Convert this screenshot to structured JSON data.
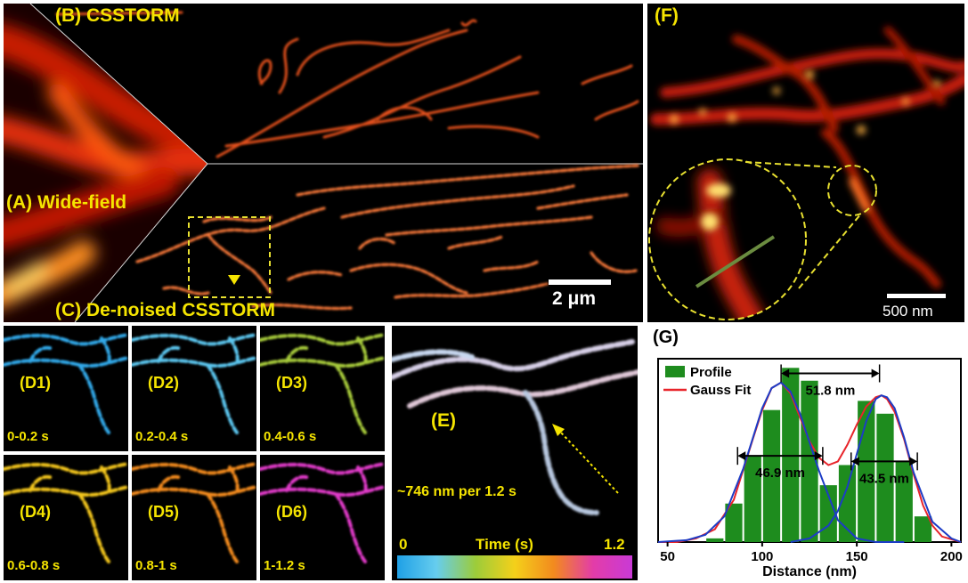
{
  "panels": {
    "B": {
      "label": "(B) CSSTORM"
    },
    "A": {
      "label": "(A) Wide-field"
    },
    "C": {
      "label": "(C) De-noised CSSTORM"
    },
    "scalebar_main": "2 μm",
    "F": {
      "label": "(F)",
      "scalebar": "500 nm"
    },
    "D": [
      {
        "label": "(D1)",
        "time": "0-0.2 s",
        "color": "#31a8e8"
      },
      {
        "label": "(D2)",
        "time": "0.2-0.4 s",
        "color": "#5cc6ef"
      },
      {
        "label": "(D3)",
        "time": "0.4-0.6 s",
        "color": "#a6c93a"
      },
      {
        "label": "(D4)",
        "time": "0.6-0.8 s",
        "color": "#f2c51a"
      },
      {
        "label": "(D5)",
        "time": "0.8-1 s",
        "color": "#f28a1e"
      },
      {
        "label": "(D6)",
        "time": "1-1.2 s",
        "color": "#e13bc9"
      }
    ],
    "E": {
      "label": "(E)",
      "speed": "~746 nm per 1.2 s",
      "colorbar": {
        "min": "0",
        "max": "1.2",
        "title": "Time (s)",
        "colors": [
          "#1fa0e6",
          "#66cdee",
          "#9ccc3a",
          "#f4d01a",
          "#f28a1e",
          "#e33ca8",
          "#c93ad6"
        ]
      }
    },
    "G": {
      "label": "(G)"
    }
  },
  "chart_data": {
    "type": "bar",
    "title": "",
    "xlabel": "Distance (nm)",
    "ylabel": "",
    "xlim": [
      45,
      205
    ],
    "ylim": [
      0,
      1.0
    ],
    "xticks": [
      50,
      100,
      150,
      200
    ],
    "bars": {
      "name": "Profile",
      "color": "#1e8c1e",
      "width": 10,
      "x": [
        75,
        85,
        95,
        105,
        115,
        125,
        135,
        145,
        155,
        165,
        175,
        185,
        195
      ],
      "values": [
        0.02,
        0.21,
        0.47,
        0.72,
        0.95,
        0.88,
        0.31,
        0.42,
        0.77,
        0.7,
        0.44,
        0.14,
        0.0
      ]
    },
    "fits": [
      {
        "name": "Gauss Fit",
        "color": "#e8242a",
        "x": [
          45,
          55,
          65,
          75,
          85,
          95,
          100,
          105,
          110,
          115,
          120,
          125,
          130,
          135,
          140,
          145,
          150,
          155,
          160,
          163,
          166,
          170,
          175,
          180,
          185,
          190,
          195,
          205
        ],
        "values": [
          0.0,
          0.0,
          0.02,
          0.07,
          0.23,
          0.56,
          0.72,
          0.84,
          0.87,
          0.81,
          0.68,
          0.55,
          0.46,
          0.42,
          0.44,
          0.53,
          0.64,
          0.74,
          0.79,
          0.8,
          0.78,
          0.71,
          0.56,
          0.37,
          0.2,
          0.09,
          0.03,
          0.0
        ]
      },
      {
        "name": "",
        "color": "#1c3cc6",
        "x": [
          45,
          60,
          70,
          80,
          90,
          100,
          105,
          110,
          115,
          120,
          130,
          140,
          150,
          160,
          175
        ],
        "values": [
          0.0,
          0.01,
          0.04,
          0.14,
          0.4,
          0.73,
          0.84,
          0.87,
          0.82,
          0.7,
          0.39,
          0.12,
          0.02,
          0.0,
          0.0
        ]
      },
      {
        "name": "",
        "color": "#1c3cc6",
        "x": [
          115,
          125,
          135,
          140,
          145,
          150,
          155,
          160,
          163,
          166,
          170,
          175,
          180,
          190,
          200,
          205
        ],
        "values": [
          0.0,
          0.02,
          0.09,
          0.17,
          0.3,
          0.48,
          0.66,
          0.78,
          0.8,
          0.79,
          0.73,
          0.57,
          0.38,
          0.11,
          0.02,
          0.0
        ]
      }
    ],
    "annotations": [
      {
        "text": "51.8 nm",
        "from": 110,
        "to": 162,
        "y": 0.92
      },
      {
        "text": "46.9 nm",
        "from": 87,
        "to": 132,
        "y": 0.47
      },
      {
        "text": "43.5 nm",
        "from": 147,
        "to": 182,
        "y": 0.44
      }
    ]
  }
}
